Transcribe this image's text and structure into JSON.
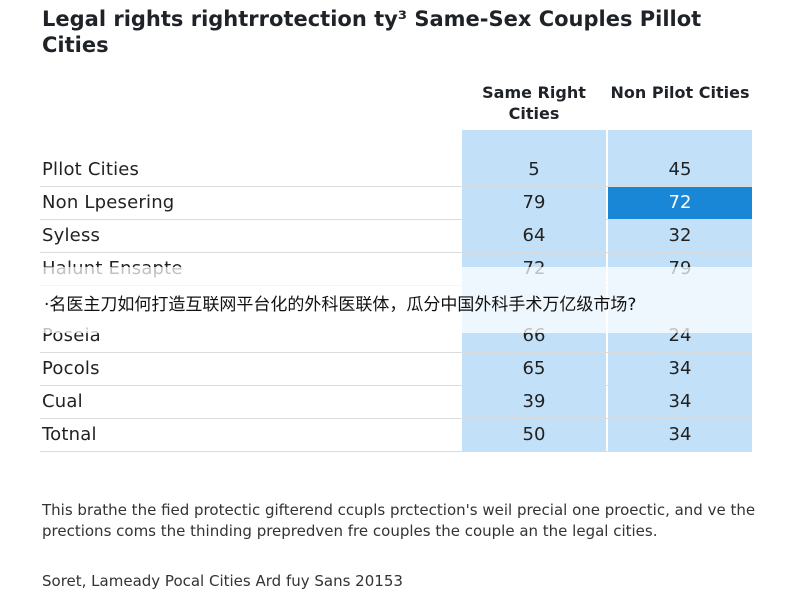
{
  "title": "Legal rights rightrrotection ty³ Same-Sex Couples Pillot Cities",
  "overlay_caption": "·名医主刀如何打造互联网平台化的外科医联体，瓜分中国外科手术万亿级市场?",
  "note": "This brathe the fied protectic gifterend ccupls prctection's weil precial one proectic, and ve the prections coms the thinding prepredven fre couples the couple an the legal cities.",
  "source": "Soret, Lameady Pocal Cities Ard fuy Sans 20153",
  "colors": {
    "column_fill": "#c2e0f7",
    "highlight": "#1a86d6"
  },
  "chart_data": {
    "type": "table",
    "title": "Legal rights rightrrotection ty³ Same-Sex Couples Pillot Cities",
    "columns": [
      "Same Right Cities",
      "Non Pilot Cities"
    ],
    "rows": [
      {
        "label": "Pllot Cities",
        "values": [
          "5",
          "45"
        ]
      },
      {
        "label": "Non Lpesering",
        "values": [
          "79",
          "72"
        ],
        "highlight_col": 1
      },
      {
        "label": "Syless",
        "values": [
          "64",
          "32"
        ]
      },
      {
        "label": "Halunt Ensapte",
        "values": [
          "72",
          "79"
        ]
      },
      {
        "label": "Poseia",
        "values": [
          "66",
          "24"
        ]
      },
      {
        "label": "Pocols",
        "values": [
          "65",
          "34"
        ]
      },
      {
        "label": "Cual",
        "values": [
          "39",
          "34"
        ]
      },
      {
        "label": "Totnal",
        "values": [
          "50",
          "34"
        ]
      }
    ]
  }
}
